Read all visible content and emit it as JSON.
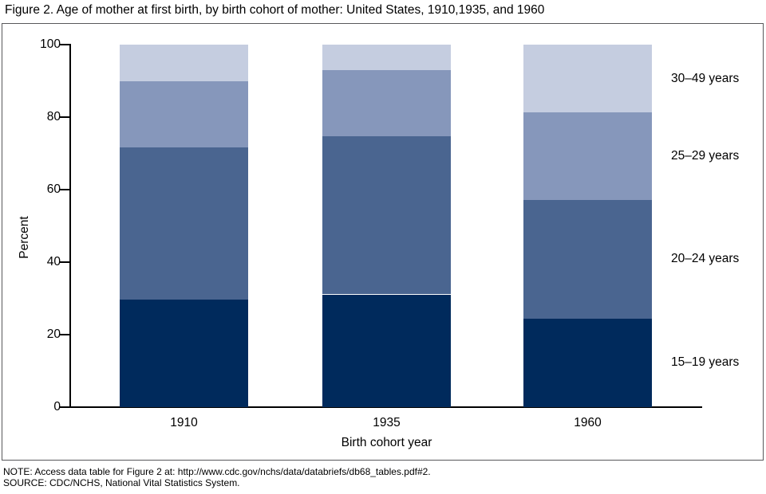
{
  "title": "Figure 2. Age of mother at first birth, by birth cohort of mother: United States, 1910,1935, and 1960",
  "notes": {
    "note": "NOTE: Access data table for Figure 2 at: http://www.cdc.gov/nchs/data/databriefs/db68_tables.pdf#2.",
    "source": "SOURCE: CDC/NCHS, National Vital Statistics System."
  },
  "colors": {
    "axis": "#000000",
    "frame_border": "#58585b",
    "age_15_19": "#002a5c",
    "age_20_24": "#4a6590",
    "age_25_29": "#8697bb",
    "age_30_49": "#c5cde0"
  },
  "chart_data": {
    "type": "bar",
    "stacked": true,
    "title": "Figure 2. Age of mother at first birth, by birth cohort of mother: United States, 1910,1935, and 1960",
    "xlabel": "Birth cohort year",
    "ylabel": "Percent",
    "ylim": [
      0,
      100
    ],
    "yticks": [
      0,
      20,
      40,
      60,
      80,
      100
    ],
    "grid": false,
    "legend_position": "right, labels aligned to 1960 bar segments",
    "categories": [
      "1910",
      "1935",
      "1960"
    ],
    "series": [
      {
        "name": "15–19 years",
        "color": "#002a5c",
        "values": [
          29.7,
          31.1,
          24.4
        ]
      },
      {
        "name": "20–24 years",
        "color": "#4a6590",
        "values": [
          41.9,
          43.6,
          32.8
        ]
      },
      {
        "name": "25–29 years",
        "color": "#8697bb",
        "values": [
          18.4,
          18.3,
          24.1
        ]
      },
      {
        "name": "30–49 years",
        "color": "#c5cde0",
        "values": [
          10.0,
          7.0,
          18.7
        ]
      }
    ]
  }
}
